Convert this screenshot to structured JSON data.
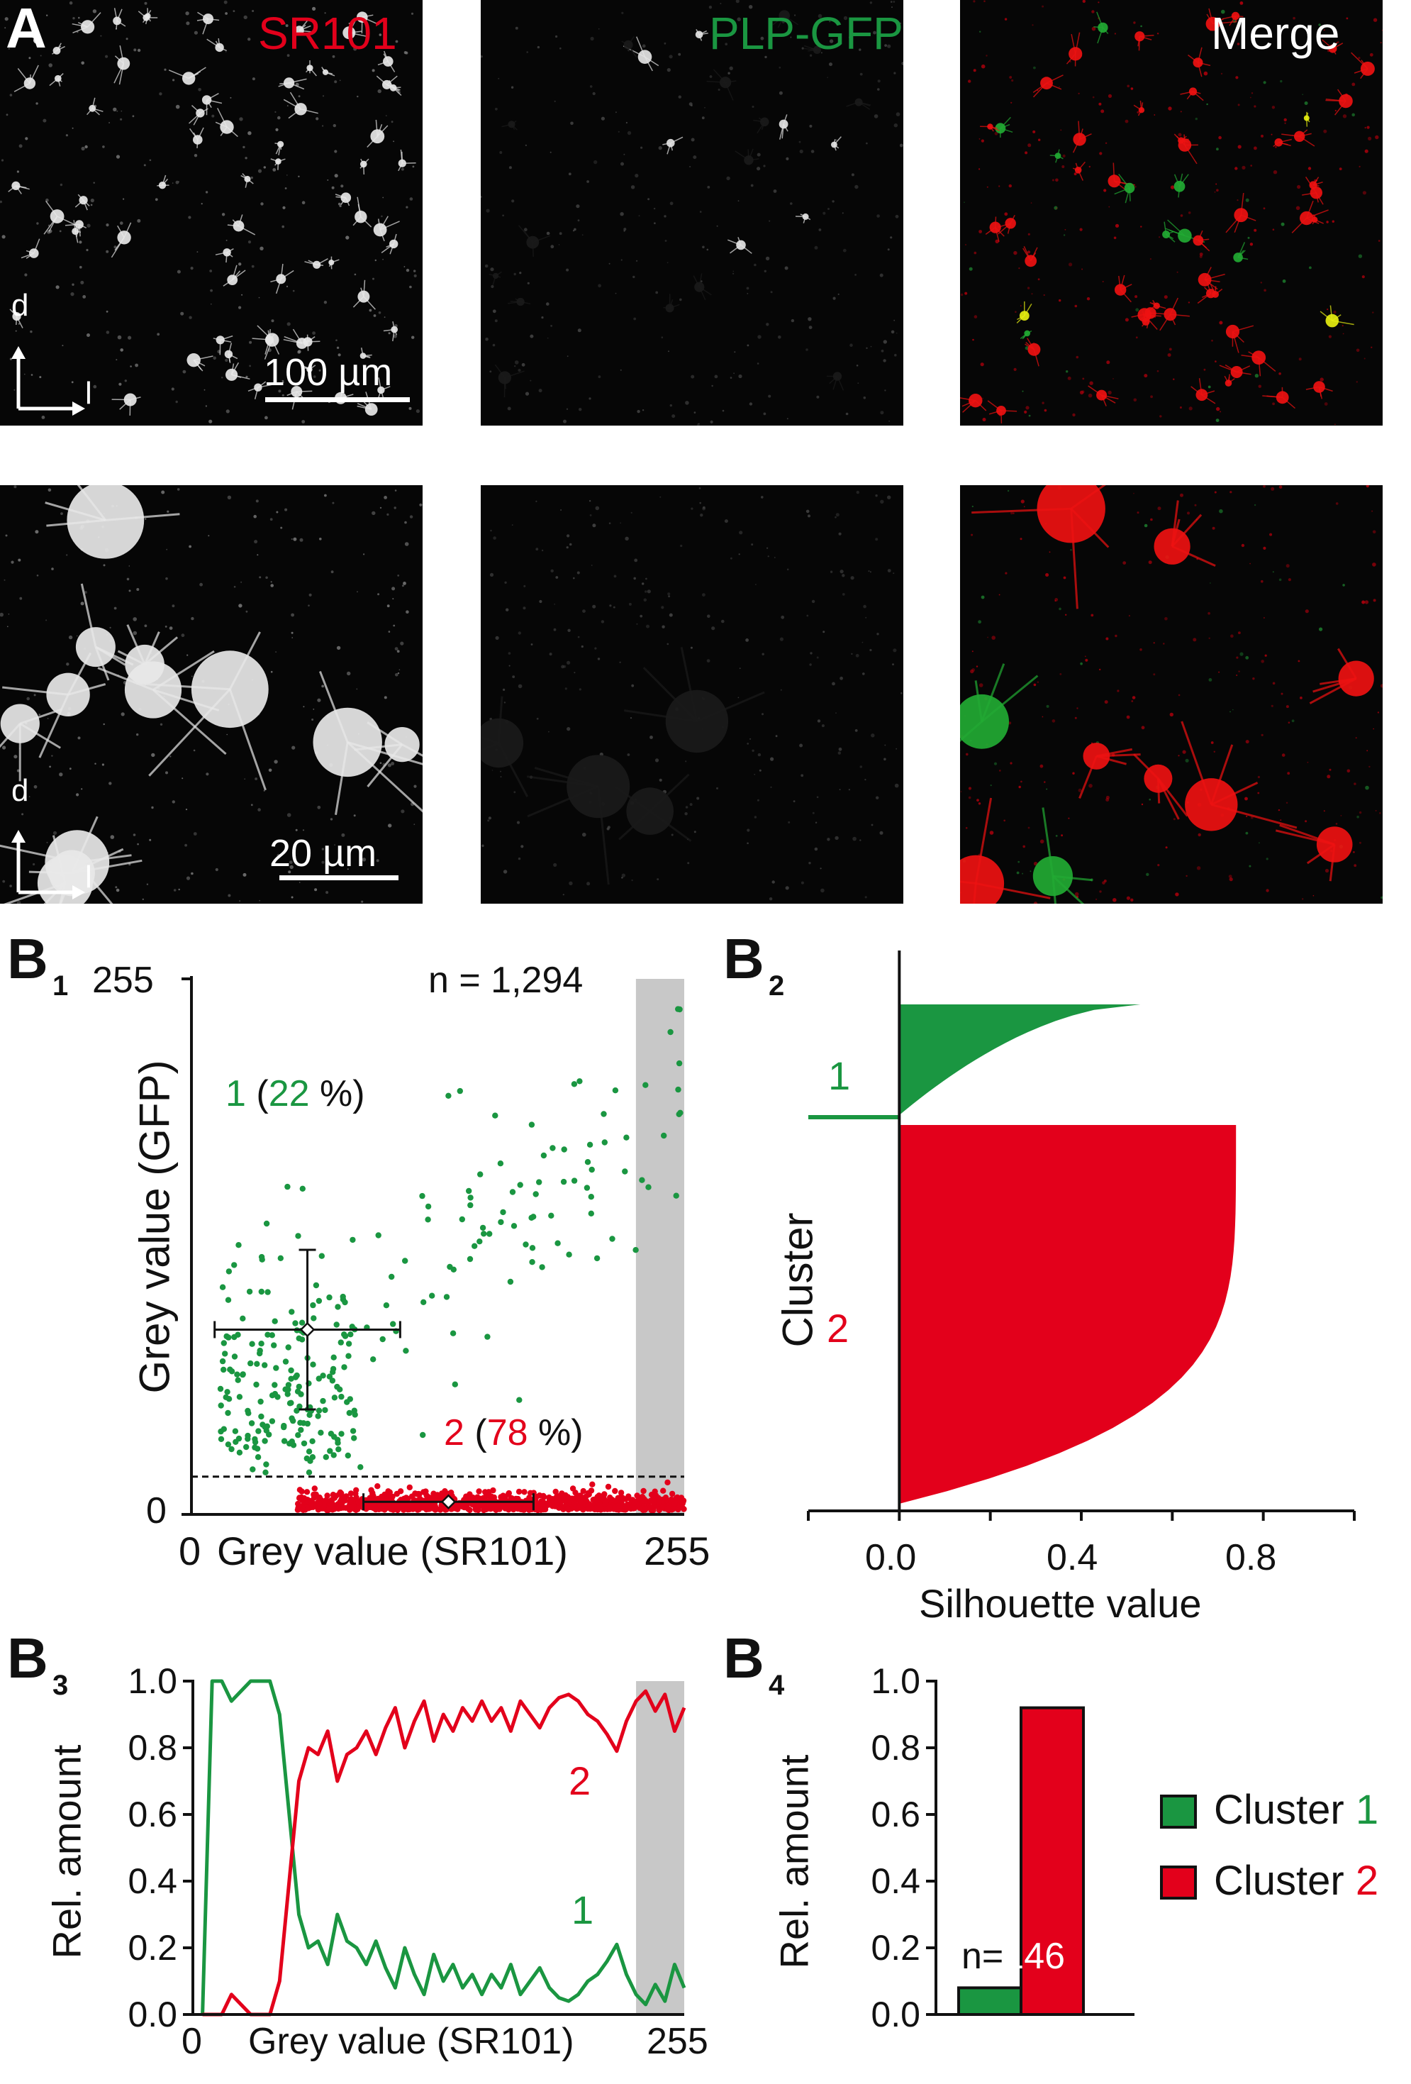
{
  "colors": {
    "green": "#1a9641",
    "red": "#e3001b",
    "grey_band": "#c8c8c8",
    "axis": "#111111"
  },
  "panelA": {
    "letter": "A",
    "channels": [
      "SR101",
      "PLP-GFP",
      "Merge"
    ],
    "scalebar_top": "100 µm",
    "scalebar_bottom": "20 µm",
    "axis_d": "d",
    "axis_l": "l"
  },
  "panelB1": {
    "letter": "B",
    "sub": "1",
    "n_label": "n = 1,294",
    "cluster1_num": "1",
    "cluster1_pct_open": " (",
    "cluster1_pct": "22",
    "cluster1_pct_close": " %)",
    "cluster2_num": "2",
    "cluster2_pct": "78",
    "ylabel": "Grey value (GFP)",
    "xlabel": "Grey value (SR101)",
    "x_tick_left": "0",
    "x_tick_right": "255",
    "y_tick_top": "255",
    "y_tick_bottom": "0"
  },
  "panelB2": {
    "letter": "B",
    "sub": "2",
    "ylabel": "Cluster",
    "xlabel": "Silhouette value",
    "cluster1": "1",
    "cluster2": "2",
    "x_ticks": [
      "0.0",
      "0.4",
      "0.8"
    ]
  },
  "panelB3": {
    "letter": "B",
    "sub": "3",
    "ylabel": "Rel. amount",
    "xlabel": "Grey value (SR101)",
    "x_tick_left": "0",
    "x_tick_right": "255",
    "y_ticks": [
      "0.0",
      "0.2",
      "0.4",
      "0.6",
      "0.8",
      "1.0"
    ],
    "label1": "1",
    "label2": "2"
  },
  "panelB4": {
    "letter": "B",
    "sub": "4",
    "ylabel": "Rel. amount",
    "y_ticks": [
      "0.0",
      "0.2",
      "0.4",
      "0.6",
      "0.8",
      "1.0"
    ],
    "n_prefix": "n=",
    "n_value": "146",
    "legend": [
      {
        "label": "Cluster ",
        "num": "1",
        "color": "#1a9641"
      },
      {
        "label": "Cluster ",
        "num": "2",
        "color": "#e3001b"
      }
    ]
  },
  "chart_data": [
    {
      "id": "B1",
      "type": "scatter",
      "xlabel": "Grey value (SR101)",
      "ylabel": "Grey value (GFP)",
      "xlim": [
        0,
        255
      ],
      "ylim": [
        0,
        255
      ],
      "n": 1294,
      "threshold_y": 18,
      "grey_band_x": [
        230,
        255
      ],
      "clusters": [
        {
          "name": "1",
          "percent": 22,
          "mean": [
            60,
            88
          ],
          "sd_x": 48,
          "sd_y": 38
        },
        {
          "name": "2",
          "percent": 78,
          "mean": [
            133,
            6
          ],
          "sd_x": 44,
          "sd_y": 4
        }
      ]
    },
    {
      "id": "B2",
      "type": "area",
      "xlabel": "Silhouette value",
      "ylabel": "Cluster",
      "xlim": [
        -0.2,
        1.0
      ],
      "clusters": [
        {
          "name": "1",
          "max": 0.53,
          "min": -0.2
        },
        {
          "name": "2",
          "max": 0.74,
          "min": 0.0
        }
      ]
    },
    {
      "id": "B3",
      "type": "line",
      "xlabel": "Grey value (SR101)",
      "ylabel": "Rel. amount",
      "xlim": [
        0,
        255
      ],
      "ylim": [
        0,
        1
      ],
      "grey_band_x": [
        230,
        255
      ],
      "x": [
        5,
        10,
        15,
        20,
        25,
        30,
        35,
        40,
        45,
        50,
        55,
        60,
        65,
        70,
        75,
        80,
        85,
        90,
        95,
        100,
        105,
        110,
        115,
        120,
        125,
        130,
        135,
        140,
        145,
        150,
        155,
        160,
        165,
        170,
        175,
        180,
        185,
        190,
        195,
        200,
        205,
        210,
        215,
        220,
        225,
        230,
        235,
        240,
        245,
        250,
        255
      ],
      "series": [
        {
          "name": "1",
          "values": [
            0.0,
            1.0,
            1.0,
            0.94,
            0.97,
            1.0,
            1.0,
            1.0,
            0.9,
            0.6,
            0.3,
            0.2,
            0.22,
            0.15,
            0.3,
            0.22,
            0.2,
            0.15,
            0.22,
            0.14,
            0.08,
            0.2,
            0.12,
            0.06,
            0.18,
            0.1,
            0.15,
            0.08,
            0.12,
            0.06,
            0.12,
            0.08,
            0.15,
            0.06,
            0.1,
            0.14,
            0.08,
            0.05,
            0.04,
            0.06,
            0.1,
            0.12,
            0.16,
            0.21,
            0.12,
            0.06,
            0.03,
            0.09,
            0.04,
            0.15,
            0.08
          ]
        },
        {
          "name": "2",
          "values": [
            0.0,
            0.0,
            0.0,
            0.06,
            0.03,
            0.0,
            0.0,
            0.0,
            0.1,
            0.4,
            0.7,
            0.8,
            0.78,
            0.85,
            0.7,
            0.78,
            0.8,
            0.85,
            0.78,
            0.86,
            0.92,
            0.8,
            0.88,
            0.94,
            0.82,
            0.9,
            0.85,
            0.92,
            0.88,
            0.94,
            0.88,
            0.92,
            0.85,
            0.94,
            0.9,
            0.86,
            0.92,
            0.95,
            0.96,
            0.94,
            0.9,
            0.88,
            0.84,
            0.79,
            0.88,
            0.94,
            0.97,
            0.91,
            0.96,
            0.85,
            0.92
          ]
        }
      ]
    },
    {
      "id": "B4",
      "type": "bar",
      "ylabel": "Rel. amount",
      "ylim": [
        0,
        1
      ],
      "n": 146,
      "categories": [
        "Cluster 1",
        "Cluster 2"
      ],
      "values": [
        0.08,
        0.92
      ]
    }
  ]
}
